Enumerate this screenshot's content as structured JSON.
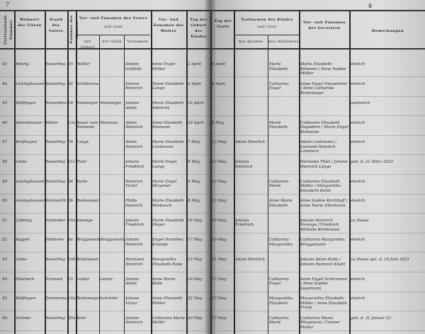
{
  "page_numbers": {
    "left": "7",
    "right": "8"
  },
  "headers": {
    "nummer": "Fortlaufende Nummer",
    "wohnort": "Wohnort der Eltern",
    "stand": "Stand des Vaters",
    "haus": "Nummer des Hauses",
    "vater": "Vor- und Zunamen des Vaters",
    "und_zwar": "und zwar",
    "geburt": "der Geburt",
    "gilde": "der Gilde",
    "vornamen": "Vornamen",
    "mutter": "Vor- und Zunamen der Mutter",
    "geburtstag": "Tag der Geburt des Kindes",
    "taufe": "Tag der Taufe",
    "taufnamen": "Taufnamen des Kindes",
    "knaben": "des Knaben",
    "maedchen": "des Mädchens",
    "gevattern": "Vor- und Zunamen der Gevattern",
    "bemerkungen": "Bemerkungen"
  },
  "rows": [
    {
      "num": "43",
      "wohnort": "Rehrig",
      "stand": "Heuerling",
      "haus": "15",
      "geburt": "Möller",
      "gilde": "",
      "vornamen": "Johann Gottlieb",
      "mutter": "Anne Engel Möller",
      "geb": "2 April",
      "tauf": "8 April",
      "knabe": "",
      "maedchen": "Marie Elisabeth",
      "gev": "Marie Elisabeth Kümmer / Anne Sophie Möller",
      "bem": "ehelich"
    },
    {
      "num": "44",
      "wohnort": "Lewinghausen",
      "stand": "Heuerling",
      "haus": "26",
      "geburt": "Schäkermann",
      "gilde": "",
      "vornamen": "Johann Heinrich",
      "mutter": "Marie Elisabeth Lange",
      "geb": "4 April",
      "tauf": "8 April",
      "knabe": "",
      "maedchen": "Catharina Engel",
      "gev": "Anne Engel Neuwöhner / Anne Catharine Brinkmeyer",
      "bem": "ehelich"
    },
    {
      "num": "45",
      "wohnort": "Wülfingen",
      "stand": "Neuwöhner",
      "haus": "18",
      "geburt": "Hülsmeyer",
      "gilde": "Hülsmeyer",
      "vornamen": "Johann Adam",
      "mutter": "Marie Elisabeth Albrecht",
      "geb": "15 April",
      "tauf": "",
      "knabe": "",
      "maedchen": "",
      "gev": "",
      "bem": "unehelich"
    },
    {
      "num": "46",
      "wohnort": "Sprenkmeyer",
      "stand": "Kötter",
      "haus": "13a",
      "geburt": "Bauer zum Niemann",
      "gilde": "Niemann",
      "vornamen": "Adam Heinrich",
      "mutter": "Anne Elisabeth Niemann",
      "geb": "29 April",
      "tauf": "5 May",
      "knabe": "",
      "maedchen": "Marie Elisabeth",
      "gev": "Catharine Elisabeth Hagedorn / Marie Engel Bohmann",
      "bem": "ehelich"
    },
    {
      "num": "47",
      "wohnort": "Wulfhagen",
      "stand": "Heuerling",
      "haus": "76",
      "geburt": "Lange",
      "gilde": "",
      "vornamen": "Adam Heinrich",
      "mutter": "Marie Elisabeth Lenkmann",
      "geb": "7 May",
      "tauf": "12 May",
      "knabe": "Adam Heinrich",
      "maedchen": "",
      "gev": "Adam Lenkmann / Gerhard Heinrich Lammers",
      "bem": "ehelich"
    },
    {
      "num": "48",
      "wohnort": "Linne",
      "stand": "Heuerling",
      "haus": "11c",
      "geburt": "Thiel",
      "gilde": "",
      "vornamen": "Johann Friedrich",
      "mutter": "Marie Engel Lange",
      "geb": "8 May",
      "tauf": "12 May",
      "knabe": "Johann Heinrich",
      "maedchen": "",
      "gev": "Hermann Thiel / Johann Heinrich Lange",
      "bem": "geb. d. 21 März 1823"
    },
    {
      "num": "49",
      "wohnort": "Lewinghausen",
      "stand": "Heuerling",
      "haus": "34",
      "geburt": "Korte",
      "gilde": "",
      "vornamen": "Heinrich Victor",
      "mutter": "Marie Engel Bürgener",
      "geb": "4 May",
      "tauf": "12 May",
      "knabe": "",
      "maedchen": "Catharine Marie",
      "gev": "Catharine Elisabeth Möller / Margaretha Elisabeth Korte",
      "bem": "ehelich"
    },
    {
      "num": "50",
      "wohnort": "Lewinghausen",
      "stand": "Kleinwirth",
      "haus": "6b",
      "geburt": "Rademeyer",
      "gilde": "",
      "vornamen": "Philip Heinrich",
      "mutter": "Marie Elisabeth Wiebusch",
      "geb": "8 May",
      "tauf": "12 May",
      "knabe": "",
      "maedchen": "Anne Marie Elisabeth",
      "gev": "Anne Sophie Kirchhoff / Anne Marie Ellerbrock",
      "bem": "ehelich"
    },
    {
      "num": "51",
      "wohnort": "Lübbing",
      "stand": "Schneider",
      "haus": "14a",
      "geburt": "Varenge",
      "gilde": "",
      "vornamen": "Johann Friedrich",
      "mutter": "Marie Elisabeth Meyer",
      "geb": "16 May",
      "tauf": "19 May",
      "knabe": "Johann Friedrich",
      "maedchen": "",
      "gev": "Johann Heinrich Varenge / Friedrich Wilhelm Brinkmann",
      "bem": "zu Hause"
    },
    {
      "num": "52",
      "wohnort": "Jeggen",
      "stand": "Vollmeier",
      "haus": "9a",
      "geburt": "Brüggemann",
      "gilde": "Brüggemann",
      "vornamen": "Johann Heinrich",
      "mutter": "Engel Dorothea Krampe",
      "geb": "17 May",
      "tauf": "19 May",
      "knabe": "",
      "maedchen": "Catharina Margaretha",
      "gev": "Catharina Margaretha Brüggemann",
      "bem": "ehelich"
    },
    {
      "num": "53",
      "wohnort": "Linne",
      "stand": "Heuerling",
      "haus": "10b",
      "geburt": "Brinkmann",
      "gilde": "",
      "vornamen": "Hermann Heinrich",
      "mutter": "Margaretha Elisabeth Rahe",
      "geb": "13 May",
      "tauf": "21 May",
      "knabe": "Adam Heinrich",
      "maedchen": "",
      "gev": "Johann Adam Rahe / Johann Heinrich Knehl",
      "bem": "zu Hause get. d. 18 Juni 1823"
    },
    {
      "num": "54",
      "wohnort": "Ellerbeck",
      "stand": "Schmied",
      "haus": "15",
      "geburt": "Lefeer",
      "gilde": "Lefeer",
      "vornamen": "Johann Adam",
      "mutter": "Anne Marie Bode",
      "geb": "19 May",
      "tauf": "27 May",
      "knabe": "",
      "maedchen": "Catharina Engel",
      "gev": "Anne Engel Schürmann / Anne Sophie Sagemann",
      "bem": "ehelich"
    },
    {
      "num": "55",
      "wohnort": "Wülfingen",
      "stand": "Zimmermann",
      "haus": "14a",
      "geburt": "Brinkmeyer",
      "gilde": "Schröder",
      "vornamen": "Johann Victor",
      "mutter": "Anne Elisabeth Möller",
      "geb": "22 May",
      "tauf": "27 May",
      "knabe": "",
      "maedchen": "Margaretha Elisabeth",
      "gev": "Margaretha Elisabeth Möller / Anne Elisabeth Frank",
      "bem": "ehelich"
    },
    {
      "num": "56",
      "wohnort": "Achmer",
      "stand": "Heuerling",
      "haus": "35a",
      "geburt": "Kohr",
      "gilde": "",
      "vornamen": "Johann Heinrich",
      "mutter": "Catharina Marie Meller",
      "geb": "20 May",
      "tauf": "27 May",
      "knabe": "",
      "maedchen": "Catharina Marie",
      "gev": "Catharina Marie Wiegmann / Clamor Meller",
      "bem": "geb. d. 31 Januar 23"
    }
  ]
}
